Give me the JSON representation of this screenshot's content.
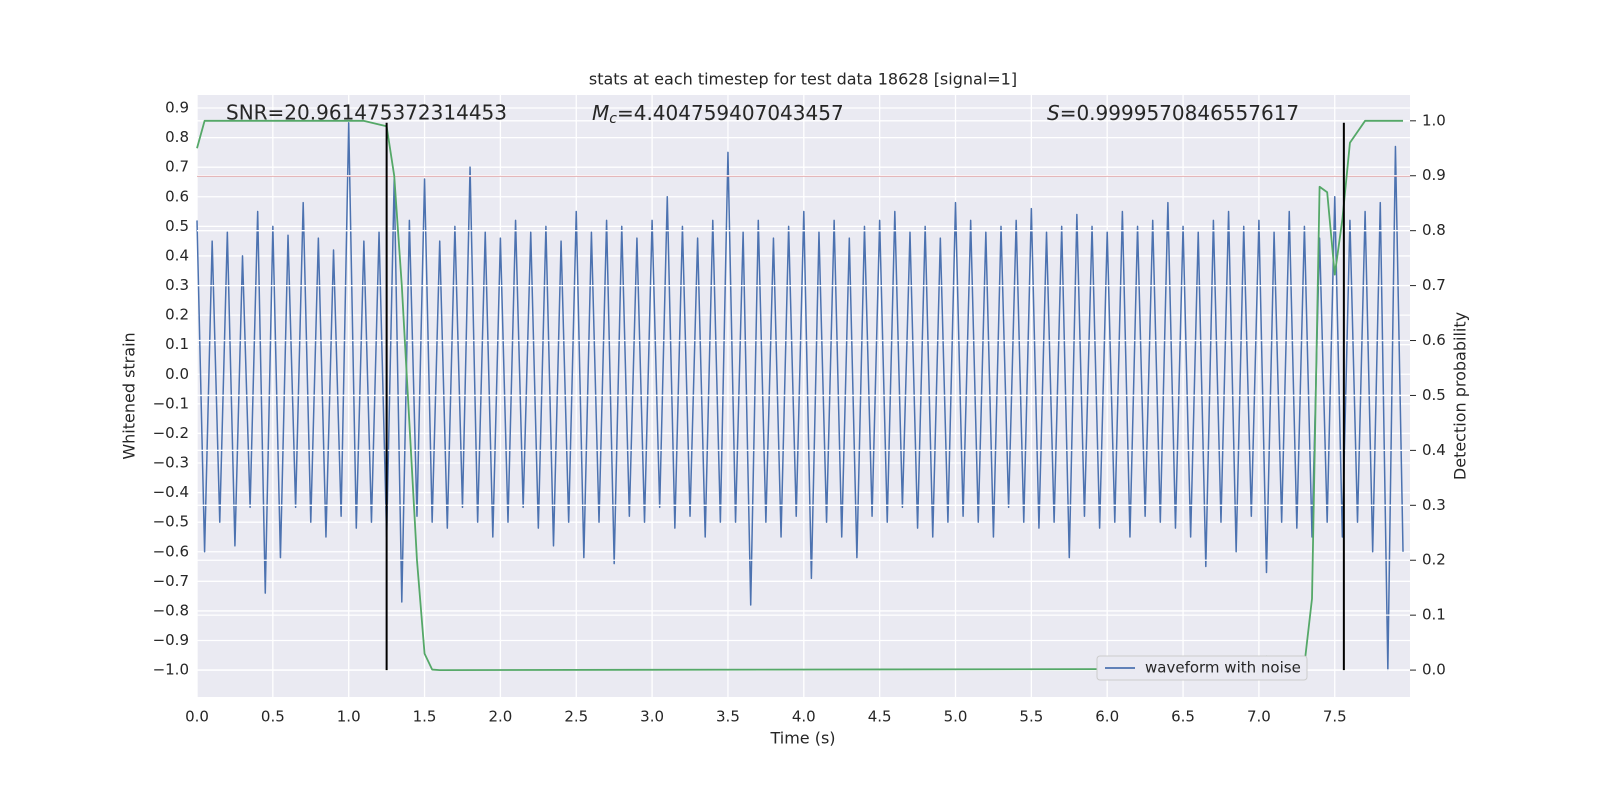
{
  "chart_data": {
    "type": "line",
    "title": "stats at each timestep for test data 18628 [signal=1]",
    "xlabel": "Time (s)",
    "ylabel": "Whitened strain",
    "y2label": "Detection probability",
    "annotations": {
      "snr": "SNR=20.961475372314453",
      "mc": {
        "symbol": "M",
        "sub": "c",
        "text": "=4.404759407043457"
      },
      "s": {
        "symbol": "S",
        "text": "=0.9999570846557617"
      }
    },
    "xlim": [
      0,
      7.996
    ],
    "ylim": [
      -1.091,
      0.944
    ],
    "y2lim": [
      -0.049,
      1.047
    ],
    "xticks": [
      {
        "value": 0,
        "label": "0.0"
      },
      0.5,
      {
        "value": 1,
        "label": "1.0"
      },
      1.5,
      {
        "value": 2,
        "label": "2.0"
      },
      2.5,
      {
        "value": 3,
        "label": "3.0"
      },
      3.5,
      {
        "value": 4,
        "label": "4.0"
      },
      4.5,
      {
        "value": 5,
        "label": "5.0"
      },
      5.5,
      {
        "value": 6,
        "label": "6.0"
      },
      6.5,
      {
        "value": 7,
        "label": "7.0"
      },
      7.5
    ],
    "yticks": [
      {
        "value": -1,
        "label": "−1.0"
      },
      {
        "value": -0.9,
        "label": "−0.9"
      },
      {
        "value": -0.8,
        "label": "−0.8"
      },
      {
        "value": -0.7,
        "label": "−0.7"
      },
      {
        "value": -0.6,
        "label": "−0.6"
      },
      {
        "value": -0.5,
        "label": "−0.5"
      },
      {
        "value": -0.4,
        "label": "−0.4"
      },
      {
        "value": -0.3,
        "label": "−0.3"
      },
      {
        "value": -0.2,
        "label": "−0.2"
      },
      {
        "value": -0.1,
        "label": "−0.1"
      },
      {
        "value": 0,
        "label": "0.0"
      },
      0.1,
      0.2,
      0.3,
      0.4,
      0.5,
      0.6,
      0.7,
      0.8,
      0.9
    ],
    "y2ticks": [
      {
        "value": 0,
        "label": "0.0"
      },
      0.1,
      0.2,
      0.3,
      0.4,
      0.5,
      0.6,
      0.7,
      0.8,
      0.9,
      {
        "value": 1,
        "label": "1.0"
      }
    ],
    "grid": true,
    "legend": "lower right",
    "series": [
      {
        "name": "waveform with noise",
        "color": "#4c72b0",
        "x": [
          0,
          0.05,
          0.1,
          0.15,
          0.2,
          0.25,
          0.3,
          0.35,
          0.4,
          0.45,
          0.5,
          0.55,
          0.6,
          0.65,
          0.7,
          0.75,
          0.8,
          0.85,
          0.9,
          0.95,
          1,
          1.05,
          1.1,
          1.15,
          1.2,
          1.25,
          1.3,
          1.35,
          1.4,
          1.45,
          1.5,
          1.55,
          1.6,
          1.65,
          1.7,
          1.75,
          1.8,
          1.85,
          1.9,
          1.95,
          2,
          2.05,
          2.1,
          2.15,
          2.2,
          2.25,
          2.3,
          2.35,
          2.4,
          2.45,
          2.5,
          2.55,
          2.6,
          2.65,
          2.7,
          2.75,
          2.8,
          2.85,
          2.9,
          2.95,
          3,
          3.05,
          3.1,
          3.15,
          3.2,
          3.25,
          3.3,
          3.35,
          3.4,
          3.45,
          3.5,
          3.55,
          3.6,
          3.65,
          3.7,
          3.75,
          3.8,
          3.85,
          3.9,
          3.95,
          4,
          4.05,
          4.1,
          4.15,
          4.2,
          4.25,
          4.3,
          4.35,
          4.4,
          4.45,
          4.5,
          4.55,
          4.6,
          4.65,
          4.7,
          4.75,
          4.8,
          4.85,
          4.9,
          4.95,
          5,
          5.05,
          5.1,
          5.15,
          5.2,
          5.25,
          5.3,
          5.35,
          5.4,
          5.45,
          5.5,
          5.55,
          5.6,
          5.65,
          5.7,
          5.75,
          5.8,
          5.85,
          5.9,
          5.95,
          6,
          6.05,
          6.1,
          6.15,
          6.2,
          6.25,
          6.3,
          6.35,
          6.4,
          6.45,
          6.5,
          6.55,
          6.6,
          6.65,
          6.7,
          6.75,
          6.8,
          6.85,
          6.9,
          6.95,
          7,
          7.05,
          7.1,
          7.15,
          7.2,
          7.25,
          7.3,
          7.35,
          7.4,
          7.45,
          7.5,
          7.55,
          7.6,
          7.65,
          7.7,
          7.75,
          7.8,
          7.85,
          7.9,
          7.95
        ],
        "values": [
          0.52,
          -0.6,
          0.45,
          -0.5,
          0.48,
          -0.58,
          0.4,
          -0.45,
          0.55,
          -0.74,
          0.5,
          -0.62,
          0.47,
          -0.45,
          0.58,
          -0.5,
          0.46,
          -0.55,
          0.42,
          -0.48,
          0.85,
          -0.52,
          0.45,
          -0.5,
          0.48,
          -0.55,
          0.66,
          -0.77,
          0.52,
          -0.48,
          0.66,
          -0.5,
          0.45,
          -0.52,
          0.5,
          -0.45,
          0.7,
          -0.5,
          0.48,
          -0.55,
          0.46,
          -0.5,
          0.52,
          -0.45,
          0.48,
          -0.52,
          0.5,
          -0.58,
          0.45,
          -0.5,
          0.55,
          -0.62,
          0.48,
          -0.5,
          0.52,
          -0.64,
          0.5,
          -0.48,
          0.46,
          -0.5,
          0.52,
          -0.45,
          0.6,
          -0.52,
          0.5,
          -0.48,
          0.46,
          -0.55,
          0.52,
          -0.5,
          0.75,
          -0.5,
          0.48,
          -0.78,
          0.52,
          -0.5,
          0.46,
          -0.55,
          0.5,
          -0.48,
          0.55,
          -0.69,
          0.48,
          -0.5,
          0.52,
          -0.55,
          0.46,
          -0.62,
          0.5,
          -0.48,
          0.52,
          -0.5,
          0.55,
          -0.45,
          0.48,
          -0.52,
          0.5,
          -0.55,
          0.46,
          -0.5,
          0.58,
          -0.48,
          0.52,
          -0.5,
          0.48,
          -0.55,
          0.5,
          -0.45,
          0.52,
          -0.5,
          0.56,
          -0.52,
          0.48,
          -0.5,
          0.5,
          -0.62,
          0.54,
          -0.48,
          0.5,
          -0.52,
          0.48,
          -0.5,
          0.55,
          -0.55,
          0.5,
          -0.48,
          0.52,
          -0.5,
          0.58,
          -0.52,
          0.5,
          -0.55,
          0.48,
          -0.65,
          0.52,
          -0.5,
          0.55,
          -0.6,
          0.5,
          -0.48,
          0.52,
          -0.67,
          0.48,
          -0.5,
          0.55,
          -0.52,
          0.5,
          -0.55,
          0.46,
          -0.5,
          0.6,
          -0.55,
          0.52,
          -0.5,
          0.55,
          -0.6,
          0.58,
          -1.0,
          0.77,
          -0.6
        ]
      },
      {
        "color": "#55a868",
        "axis": "y2",
        "x": [
          0,
          0.05,
          1.1,
          1.25,
          1.3,
          1.35,
          1.4,
          1.45,
          1.5,
          1.55,
          1.6,
          6.5,
          6.6,
          6.7,
          6.8,
          6.9,
          7.0,
          7.05,
          7.1,
          7.15,
          7.25,
          7.3,
          7.35,
          7.4,
          7.45,
          7.5,
          7.55,
          7.6,
          7.7,
          7.95
        ],
        "values": [
          0.95,
          1.0,
          1.0,
          0.99,
          0.9,
          0.7,
          0.45,
          0.2,
          0.03,
          0.001,
          0.0,
          0.002,
          0.005,
          0.008,
          0.01,
          0.002,
          0.005,
          0.025,
          0.01,
          0.0,
          0.002,
          0.01,
          0.13,
          0.88,
          0.87,
          0.72,
          0.82,
          0.96,
          1.0,
          1.0
        ]
      }
    ],
    "hline": {
      "y": 0.67,
      "color": "#c44e52"
    },
    "vlines": {
      "x": [
        1.25,
        7.56
      ],
      "ymin": -1.0,
      "ymax": 0.85,
      "color": "#000000"
    }
  }
}
